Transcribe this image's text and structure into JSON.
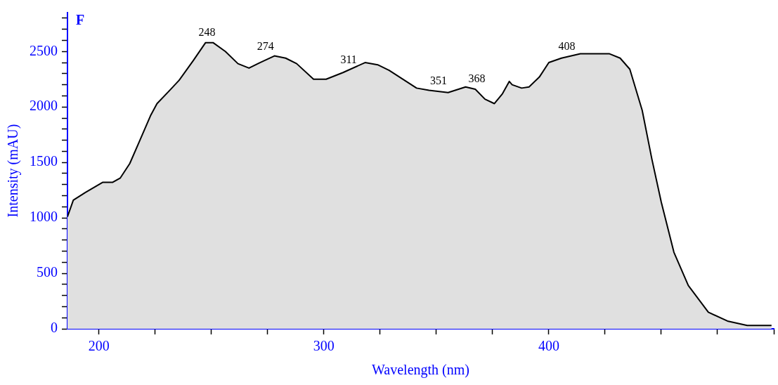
{
  "chart_data": {
    "type": "area",
    "title": "F",
    "xlabel": "Wavelength (nm)",
    "ylabel": "Intensity (mAU)",
    "xlim": [
      186,
      500
    ],
    "xticks": [
      200,
      {
        "value": 225,
        "label": null
      },
      {
        "value": 250,
        "label": null
      },
      {
        "value": 275,
        "label": null
      },
      300,
      {
        "value": 325,
        "label": null
      },
      {
        "value": 350,
        "label": null
      },
      {
        "value": 375,
        "label": null
      },
      400,
      {
        "value": 425,
        "label": null
      },
      {
        "value": 450,
        "label": null
      },
      {
        "value": 475,
        "label": null
      },
      {
        "value": 500,
        "label": null
      }
    ],
    "ylim": [
      0,
      2850
    ],
    "yticks": [
      0,
      {
        "value": 100,
        "label": null
      },
      {
        "value": 200,
        "label": null
      },
      {
        "value": 300,
        "label": null
      },
      {
        "value": 400,
        "label": null
      },
      500,
      {
        "value": 600,
        "label": null
      },
      {
        "value": 700,
        "label": null
      },
      {
        "value": 800,
        "label": null
      },
      {
        "value": 900,
        "label": null
      },
      1000,
      {
        "value": 1100,
        "label": null
      },
      {
        "value": 1200,
        "label": null
      },
      {
        "value": 1300,
        "label": null
      },
      {
        "value": 1400,
        "label": null
      },
      1500,
      {
        "value": 1600,
        "label": null
      },
      {
        "value": 1700,
        "label": null
      },
      {
        "value": 1800,
        "label": null
      },
      {
        "value": 1900,
        "label": null
      },
      2000,
      {
        "value": 2100,
        "label": null
      },
      {
        "value": 2200,
        "label": null
      },
      {
        "value": 2300,
        "label": null
      },
      {
        "value": 2400,
        "label": null
      },
      2500,
      {
        "value": 2600,
        "label": null
      },
      {
        "value": 2700,
        "label": null
      },
      {
        "value": 2800,
        "label": null
      }
    ],
    "x": [
      186,
      188.6,
      194,
      201.6,
      206,
      209.5,
      213.7,
      218,
      222.9,
      225.8,
      231,
      235.6,
      242,
      247.4,
      250.7,
      256.2,
      261.8,
      266.7,
      271.6,
      278,
      283,
      287.9,
      295.4,
      301,
      308.5,
      318.3,
      323.9,
      329,
      341.2,
      346.7,
      355.2,
      363,
      367.3,
      371.6,
      375.8,
      379.4,
      382.4,
      383.7,
      387.9,
      391.2,
      395.8,
      400,
      405.6,
      414,
      426.8,
      431.7,
      436,
      441.5,
      445.8,
      450,
      455.6,
      462,
      470.9,
      479.4,
      488.2,
      499
    ],
    "series": [
      {
        "color": "#000000",
        "values": [
          1010,
          1160,
          1230,
          1320,
          1320,
          1360,
          1490,
          1690,
          1920,
          2030,
          2140,
          2240,
          2420,
          2580,
          2580,
          2500,
          2390,
          2350,
          2400,
          2460,
          2440,
          2390,
          2250,
          2250,
          2310,
          2400,
          2380,
          2330,
          2170,
          2150,
          2130,
          2180,
          2160,
          2070,
          2030,
          2120,
          2230,
          2200,
          2170,
          2180,
          2270,
          2400,
          2440,
          2480,
          2480,
          2440,
          2340,
          1970,
          1530,
          1140,
          690,
          390,
          150,
          70,
          30,
          30
        ]
      }
    ],
    "annotations": [
      {
        "text": "248",
        "x": 248,
        "y": 2580
      },
      {
        "text": "274",
        "x": 274,
        "y": 2450
      },
      {
        "text": "311",
        "x": 311,
        "y": 2330
      },
      {
        "text": "351",
        "x": 351,
        "y": 2140
      },
      {
        "text": "368",
        "x": 368,
        "y": 2160
      },
      {
        "text": "408",
        "x": 408,
        "y": 2450
      }
    ],
    "grid": false,
    "legend": false
  }
}
